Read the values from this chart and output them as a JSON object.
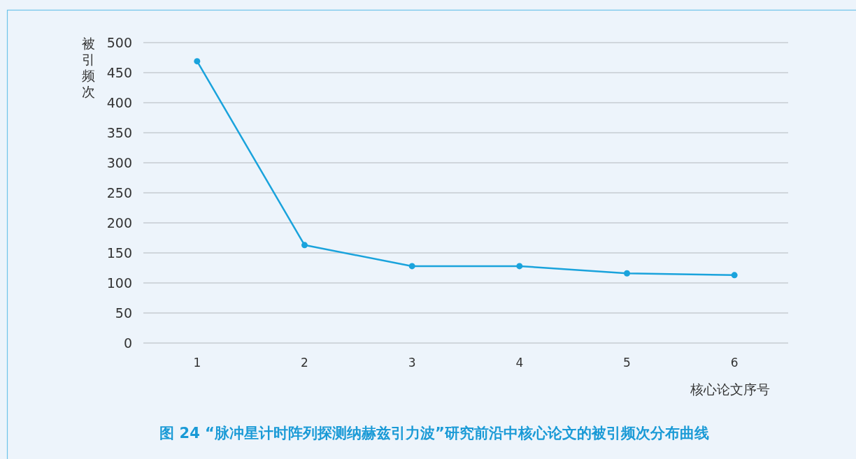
{
  "chart_data": {
    "type": "line",
    "title": "图 24 “脉冲星计时阵列探测纳赫兹引力波”研究前沿中核心论文的被引频次分布曲线",
    "xlabel": "核心论文序号",
    "ylabel": "被引频次",
    "categories": [
      "1",
      "2",
      "3",
      "4",
      "5",
      "6"
    ],
    "series": [
      {
        "color": "#1aa3dc",
        "values": [
          469,
          163,
          128,
          128,
          116,
          113
        ]
      }
    ],
    "ylim": [
      0,
      500
    ],
    "yticks": [
      0,
      50,
      100,
      150,
      200,
      250,
      300,
      350,
      400,
      450,
      500
    ],
    "grid": "y",
    "marker": "circle",
    "line_style": "solid"
  }
}
